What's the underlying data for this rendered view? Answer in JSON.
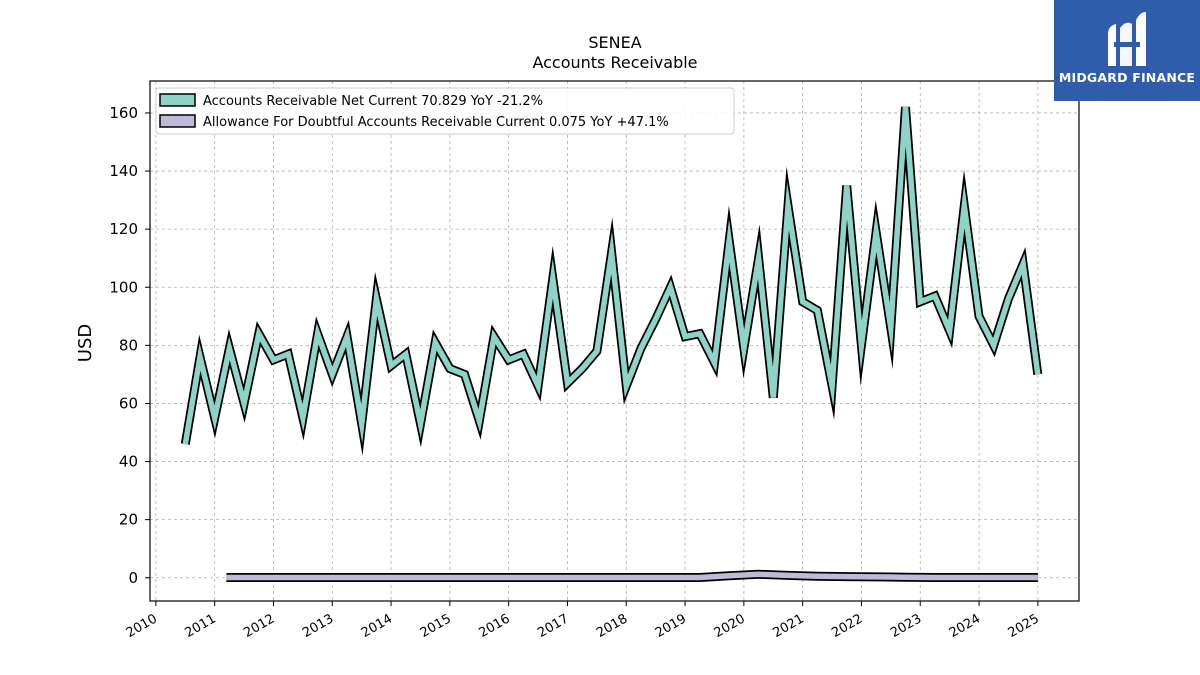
{
  "brand": {
    "name": "MIDGARD FINANCE",
    "bg_color": "#2f5dab"
  },
  "chart_data": {
    "type": "line",
    "title": "SENEA",
    "subtitle": "Accounts Receivable",
    "ylabel": "USD",
    "xlabel": "",
    "ylim": [
      -8,
      171
    ],
    "xlim": [
      2009.9,
      2025.7
    ],
    "yticks": [
      0,
      20,
      40,
      60,
      80,
      100,
      120,
      140,
      160
    ],
    "xticks": [
      2010,
      2011,
      2012,
      2013,
      2014,
      2015,
      2016,
      2017,
      2018,
      2019,
      2020,
      2021,
      2022,
      2023,
      2024,
      2025
    ],
    "grid": true,
    "legend_position": "top-left",
    "series": [
      {
        "name": "Accounts Receivable Net Current",
        "legend_label": "Accounts Receivable Net Current  70.829 YoY -21.2%",
        "color": "#8dd3c7",
        "x": [
          2010.5,
          2010.75,
          2011.0,
          2011.25,
          2011.5,
          2011.75,
          2012.0,
          2012.25,
          2012.5,
          2012.75,
          2013.0,
          2013.25,
          2013.5,
          2013.75,
          2014.0,
          2014.25,
          2014.5,
          2014.75,
          2015.0,
          2015.25,
          2015.5,
          2015.75,
          2016.0,
          2016.25,
          2016.5,
          2016.75,
          2017.0,
          2017.25,
          2017.5,
          2017.75,
          2018.0,
          2018.25,
          2018.5,
          2018.75,
          2019.0,
          2019.25,
          2019.5,
          2019.75,
          2020.0,
          2020.25,
          2020.5,
          2020.75,
          2021.0,
          2021.25,
          2021.5,
          2021.75,
          2022.0,
          2022.25,
          2022.5,
          2022.75,
          2023.0,
          2023.25,
          2023.5,
          2023.75,
          2024.0,
          2024.25,
          2024.5,
          2024.75,
          2025.0
        ],
        "y": [
          46,
          76,
          55,
          79,
          60,
          84,
          75,
          77,
          55,
          84,
          70,
          83,
          53,
          96,
          73,
          77,
          53,
          81,
          72,
          70,
          54,
          83,
          75,
          77,
          66,
          103,
          67,
          72,
          78,
          112,
          66,
          79,
          89,
          100,
          83,
          84,
          74,
          116,
          79,
          110,
          62,
          128,
          95,
          92,
          66,
          135,
          80,
          119,
          86,
          162,
          95,
          97,
          85,
          128,
          90,
          80,
          96,
          108,
          70
        ]
      },
      {
        "name": "Allowance For Doubtful Accounts Receivable Current",
        "legend_label": "Allowance For Doubtful Accounts Receivable Current  0.075 YoY +47.1%",
        "color": "#bebada",
        "x": [
          2011.2,
          2012.0,
          2013.0,
          2014.0,
          2015.0,
          2016.0,
          2017.0,
          2018.0,
          2019.0,
          2019.25,
          2019.75,
          2020.25,
          2020.75,
          2021.25,
          2021.75,
          2022.25,
          2022.75,
          2023.25,
          2023.75,
          2024.25,
          2024.75,
          2025.0
        ],
        "y": [
          0.1,
          0.1,
          0.1,
          0.1,
          0.1,
          0.1,
          0.1,
          0.1,
          0.1,
          0.1,
          0.7,
          1.2,
          0.8,
          0.5,
          0.4,
          0.3,
          0.2,
          0.1,
          0.1,
          0.1,
          0.1,
          0.08
        ]
      }
    ]
  }
}
